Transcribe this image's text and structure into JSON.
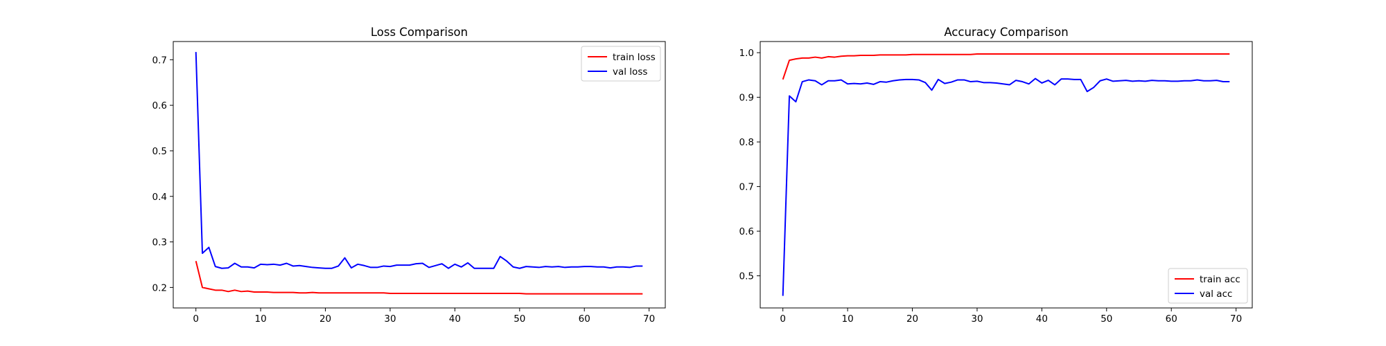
{
  "chart_data": [
    {
      "type": "line",
      "title": "Loss Comparison",
      "xlabel": "",
      "ylabel": "",
      "xlim": [
        -3.5,
        72.5
      ],
      "ylim": [
        0.155,
        0.74
      ],
      "xticks": [
        0,
        10,
        20,
        30,
        40,
        50,
        60,
        70
      ],
      "yticks": [
        0.2,
        0.3,
        0.4,
        0.5,
        0.6,
        0.7
      ],
      "ytick_labels": [
        "0.2",
        "0.3",
        "0.4",
        "0.5",
        "0.6",
        "0.7"
      ],
      "legend_position": "top-right",
      "series": [
        {
          "name": "train loss",
          "color": "#ff0000",
          "values": [
            0.258,
            0.2,
            0.197,
            0.194,
            0.194,
            0.191,
            0.194,
            0.191,
            0.192,
            0.19,
            0.19,
            0.19,
            0.189,
            0.189,
            0.189,
            0.189,
            0.188,
            0.188,
            0.189,
            0.188,
            0.188,
            0.188,
            0.188,
            0.188,
            0.188,
            0.188,
            0.188,
            0.188,
            0.188,
            0.188,
            0.187,
            0.187,
            0.187,
            0.187,
            0.187,
            0.187,
            0.187,
            0.187,
            0.187,
            0.187,
            0.187,
            0.187,
            0.187,
            0.187,
            0.187,
            0.187,
            0.187,
            0.187,
            0.187,
            0.187,
            0.187,
            0.186,
            0.186,
            0.186,
            0.186,
            0.186,
            0.186,
            0.186,
            0.186,
            0.186,
            0.186,
            0.186,
            0.186,
            0.186,
            0.186,
            0.186,
            0.186,
            0.186,
            0.186,
            0.186
          ]
        },
        {
          "name": "val loss",
          "color": "#0000ff",
          "values": [
            0.717,
            0.275,
            0.288,
            0.246,
            0.242,
            0.243,
            0.253,
            0.245,
            0.245,
            0.243,
            0.251,
            0.25,
            0.251,
            0.249,
            0.253,
            0.247,
            0.248,
            0.246,
            0.244,
            0.243,
            0.242,
            0.242,
            0.247,
            0.265,
            0.243,
            0.251,
            0.248,
            0.244,
            0.244,
            0.247,
            0.246,
            0.249,
            0.249,
            0.249,
            0.252,
            0.253,
            0.244,
            0.248,
            0.252,
            0.242,
            0.251,
            0.245,
            0.254,
            0.242,
            0.242,
            0.242,
            0.242,
            0.268,
            0.258,
            0.245,
            0.242,
            0.246,
            0.245,
            0.244,
            0.246,
            0.245,
            0.246,
            0.244,
            0.245,
            0.245,
            0.246,
            0.246,
            0.245,
            0.245,
            0.243,
            0.245,
            0.245,
            0.244,
            0.247,
            0.247
          ]
        }
      ]
    },
    {
      "type": "line",
      "title": "Accuracy Comparison",
      "xlabel": "",
      "ylabel": "",
      "xlim": [
        -3.5,
        72.5
      ],
      "ylim": [
        0.428,
        1.025
      ],
      "xticks": [
        0,
        10,
        20,
        30,
        40,
        50,
        60,
        70
      ],
      "yticks": [
        0.5,
        0.6,
        0.7,
        0.8,
        0.9,
        1.0
      ],
      "ytick_labels": [
        "0.5",
        "0.6",
        "0.7",
        "0.8",
        "0.9",
        "1.0"
      ],
      "legend_position": "bottom-right",
      "series": [
        {
          "name": "train acc",
          "color": "#ff0000",
          "values": [
            0.94,
            0.983,
            0.986,
            0.988,
            0.988,
            0.99,
            0.988,
            0.991,
            0.99,
            0.992,
            0.993,
            0.993,
            0.994,
            0.994,
            0.994,
            0.995,
            0.995,
            0.995,
            0.995,
            0.995,
            0.996,
            0.996,
            0.996,
            0.996,
            0.996,
            0.996,
            0.996,
            0.996,
            0.996,
            0.996,
            0.997,
            0.997,
            0.997,
            0.997,
            0.997,
            0.997,
            0.997,
            0.997,
            0.997,
            0.997,
            0.997,
            0.997,
            0.997,
            0.997,
            0.997,
            0.997,
            0.997,
            0.997,
            0.997,
            0.997,
            0.997,
            0.997,
            0.997,
            0.997,
            0.997,
            0.997,
            0.997,
            0.997,
            0.997,
            0.997,
            0.997,
            0.997,
            0.997,
            0.997,
            0.997,
            0.997,
            0.997,
            0.997,
            0.997,
            0.997
          ]
        },
        {
          "name": "val acc",
          "color": "#0000ff",
          "values": [
            0.455,
            0.903,
            0.89,
            0.935,
            0.939,
            0.937,
            0.928,
            0.937,
            0.937,
            0.939,
            0.93,
            0.931,
            0.93,
            0.932,
            0.929,
            0.935,
            0.934,
            0.937,
            0.939,
            0.94,
            0.94,
            0.939,
            0.933,
            0.916,
            0.94,
            0.931,
            0.934,
            0.939,
            0.939,
            0.935,
            0.936,
            0.933,
            0.933,
            0.932,
            0.93,
            0.928,
            0.938,
            0.935,
            0.93,
            0.942,
            0.932,
            0.938,
            0.928,
            0.941,
            0.941,
            0.94,
            0.94,
            0.913,
            0.922,
            0.937,
            0.941,
            0.936,
            0.937,
            0.938,
            0.936,
            0.937,
            0.936,
            0.938,
            0.937,
            0.937,
            0.936,
            0.936,
            0.937,
            0.937,
            0.939,
            0.937,
            0.937,
            0.938,
            0.935,
            0.935
          ]
        }
      ]
    }
  ]
}
